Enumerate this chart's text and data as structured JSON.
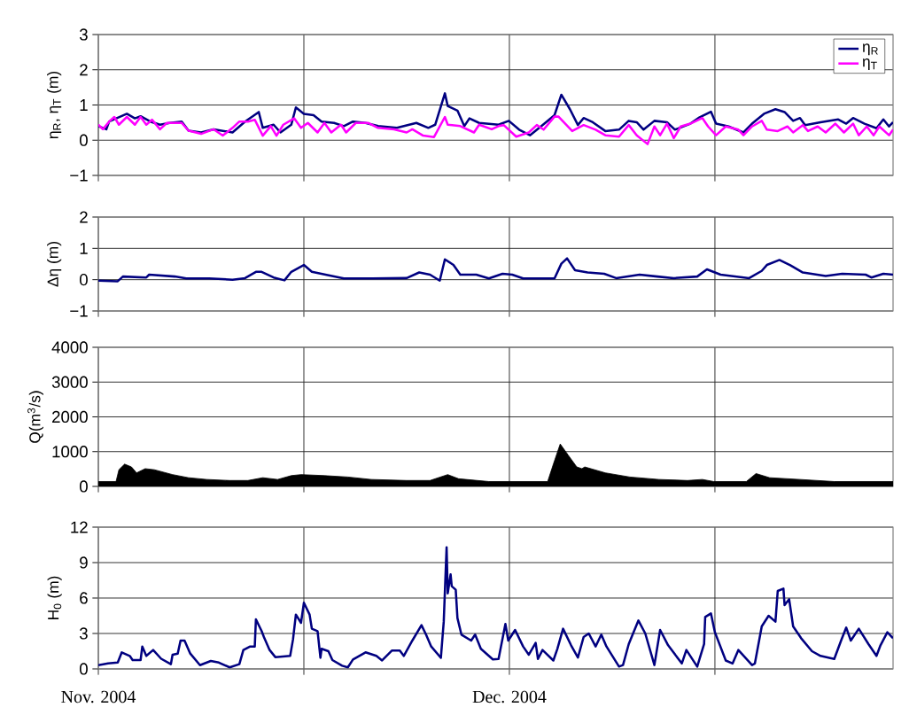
{
  "chart_data": [
    {
      "type": "line",
      "ylabel": "η$_{R}$, η$_{T}$ (m)",
      "xlim": [
        "2004-11-01",
        "2004-12-29"
      ],
      "xticks": [
        "2004-11-01",
        "2004-11-16",
        "2004-12-01",
        "2004-12-16"
      ],
      "ylim": [
        -1,
        3
      ],
      "yticks": [
        {
          "value": -1,
          "label": "−1"
        },
        0,
        1,
        2,
        3
      ],
      "tick_labels": "y",
      "grid": true,
      "legend": "top right",
      "series": [
        {
          "name": "η$_{R}$",
          "color": "#000080",
          "x": [
            "2004-11-01T00:00",
            "2004-11-01T14:00",
            "2004-11-01T19:00",
            "2004-11-03T02:00",
            "2004-11-03T16:00",
            "2004-11-04T02:00",
            "2004-11-04T19:00",
            "2004-11-05T12:00",
            "2004-11-06T05:00",
            "2004-11-07T02:00",
            "2004-11-07T14:00",
            "2004-11-08T12:00",
            "2004-11-09T10:00",
            "2004-11-10T19:00",
            "2004-11-11T17:00",
            "2004-11-12T17:00",
            "2004-11-13T00:00",
            "2004-11-13T19:00",
            "2004-11-14T07:00",
            "2004-11-15T02:00",
            "2004-11-15T10:00",
            "2004-11-16T00:00",
            "2004-11-16T17:00",
            "2004-11-17T07:00",
            "2004-11-18T05:00",
            "2004-11-18T22:00",
            "2004-11-19T14:00",
            "2004-11-20T12:00",
            "2004-11-21T10:00",
            "2004-11-22T19:00",
            "2004-11-24T05:00",
            "2004-11-25T02:00",
            "2004-11-25T14:00",
            "2004-11-26T07:00",
            "2004-11-26T12:00",
            "2004-11-27T05:00",
            "2004-11-27T17:00",
            "2004-11-28T02:00",
            "2004-11-28T19:00",
            "2004-11-30T05:00",
            "2004-11-30T23:00",
            "2004-12-01T17:00",
            "2004-12-02T12:00",
            "2004-12-03T10:00",
            "2004-12-04T07:00",
            "2004-12-04T19:00",
            "2004-12-05T10:00",
            "2004-12-06T00:00",
            "2004-12-06T10:00",
            "2004-12-07T02:00",
            "2004-12-08T00:00",
            "2004-12-09T00:00",
            "2004-12-09T17:00",
            "2004-12-10T07:00",
            "2004-12-10T19:00",
            "2004-12-11T14:00",
            "2004-12-12T12:00",
            "2004-12-13T02:00",
            "2004-12-14T05:00",
            "2004-12-14T19:00",
            "2004-12-15T17:00",
            "2004-12-16T02:00",
            "2004-12-17T00:00",
            "2004-12-18T02:00",
            "2004-12-18T17:00",
            "2004-12-19T14:00",
            "2004-12-20T10:00",
            "2004-12-21T02:00",
            "2004-12-21T17:00",
            "2004-12-22T05:00",
            "2004-12-22T14:00",
            "2004-12-23T17:00",
            "2004-12-25T00:00",
            "2004-12-25T14:00",
            "2004-12-26T02:00",
            "2004-12-26T22:00",
            "2004-12-27T19:00",
            "2004-12-28T07:00",
            "2004-12-28T17:00",
            "2004-12-29T00:00"
          ],
          "values": [
            0.4,
            0.31,
            0.53,
            0.75,
            0.62,
            0.68,
            0.53,
            0.44,
            0.49,
            0.53,
            0.27,
            0.22,
            0.31,
            0.22,
            0.53,
            0.8,
            0.35,
            0.44,
            0.22,
            0.44,
            0.93,
            0.75,
            0.71,
            0.53,
            0.49,
            0.4,
            0.53,
            0.49,
            0.4,
            0.35,
            0.49,
            0.35,
            0.44,
            1.33,
            0.97,
            0.84,
            0.4,
            0.62,
            0.49,
            0.44,
            0.55,
            0.3,
            0.14,
            0.43,
            0.71,
            1.29,
            0.88,
            0.43,
            0.63,
            0.51,
            0.26,
            0.3,
            0.55,
            0.51,
            0.3,
            0.55,
            0.51,
            0.3,
            0.47,
            0.63,
            0.81,
            0.47,
            0.39,
            0.22,
            0.47,
            0.75,
            0.88,
            0.8,
            0.55,
            0.63,
            0.43,
            0.51,
            0.59,
            0.47,
            0.63,
            0.47,
            0.34,
            0.59,
            0.39,
            0.51
          ]
        },
        {
          "name": "η$_{T}$",
          "color": "#ff00ff",
          "x": [
            "2004-11-01T00:00",
            "2004-11-01T08:00",
            "2004-11-01T19:00",
            "2004-11-02T04:00",
            "2004-11-02T12:00",
            "2004-11-03T02:00",
            "2004-11-03T16:00",
            "2004-11-04T02:00",
            "2004-11-04T12:00",
            "2004-11-04T22:00",
            "2004-11-05T12:00",
            "2004-11-06T00:00",
            "2004-11-07T02:00",
            "2004-11-07T14:00",
            "2004-11-08T12:00",
            "2004-11-09T10:00",
            "2004-11-10T02:00",
            "2004-11-10T19:00",
            "2004-11-11T07:00",
            "2004-11-11T22:00",
            "2004-11-12T10:00",
            "2004-11-13T00:00",
            "2004-11-13T14:00",
            "2004-11-14T00:00",
            "2004-11-14T12:00",
            "2004-11-15T07:00",
            "2004-11-15T19:00",
            "2004-11-16T07:00",
            "2004-11-17T00:00",
            "2004-11-17T12:00",
            "2004-11-18T00:00",
            "2004-11-18T17:00",
            "2004-11-19T02:00",
            "2004-11-19T19:00",
            "2004-11-20T17:00",
            "2004-11-21T10:00",
            "2004-11-22T14:00",
            "2004-11-23T12:00",
            "2004-11-23T22:00",
            "2004-11-24T17:00",
            "2004-11-25T12:00",
            "2004-11-26T07:00",
            "2004-11-26T12:00",
            "2004-11-27T10:00",
            "2004-11-28T10:00",
            "2004-11-28T19:00",
            "2004-11-29T17:00",
            "2004-11-30T05:00",
            "2004-11-30T14:00",
            "2004-12-01T12:00",
            "2004-12-02T10:00",
            "2004-12-03T00:00",
            "2004-12-03T12:00",
            "2004-12-04T07:00",
            "2004-12-04T14:00",
            "2004-12-05T14:00",
            "2004-12-06T10:00",
            "2004-12-07T07:00",
            "2004-12-08T00:00",
            "2004-12-09T00:00",
            "2004-12-09T17:00",
            "2004-12-10T07:00",
            "2004-12-11T02:00",
            "2004-12-11T14:00",
            "2004-12-12T00:00",
            "2004-12-12T12:00",
            "2004-12-13T00:00",
            "2004-12-13T12:00",
            "2004-12-14T05:00",
            "2004-12-15T02:00",
            "2004-12-15T12:00",
            "2004-12-16T02:00",
            "2004-12-16T19:00",
            "2004-12-17T17:00",
            "2004-12-18T02:00",
            "2004-12-18T17:00",
            "2004-12-19T10:00",
            "2004-12-19T19:00",
            "2004-12-20T14:00",
            "2004-12-21T07:00",
            "2004-12-21T17:00",
            "2004-12-22T10:00",
            "2004-12-22T19:00",
            "2004-12-23T12:00",
            "2004-12-24T02:00",
            "2004-12-24T19:00",
            "2004-12-25T10:00",
            "2004-12-26T02:00",
            "2004-12-26T12:00",
            "2004-12-27T02:00",
            "2004-12-27T14:00",
            "2004-12-28T00:00",
            "2004-12-28T17:00",
            "2004-12-29T00:00"
          ],
          "values": [
            0.44,
            0.31,
            0.53,
            0.66,
            0.44,
            0.66,
            0.44,
            0.66,
            0.44,
            0.58,
            0.31,
            0.49,
            0.49,
            0.27,
            0.18,
            0.31,
            0.13,
            0.35,
            0.53,
            0.53,
            0.58,
            0.13,
            0.4,
            0.13,
            0.44,
            0.62,
            0.35,
            0.49,
            0.22,
            0.49,
            0.22,
            0.44,
            0.22,
            0.49,
            0.49,
            0.35,
            0.31,
            0.22,
            0.31,
            0.13,
            0.09,
            0.66,
            0.44,
            0.4,
            0.22,
            0.44,
            0.31,
            0.4,
            0.43,
            0.1,
            0.22,
            0.43,
            0.3,
            0.67,
            0.67,
            0.26,
            0.43,
            0.3,
            0.14,
            0.1,
            0.43,
            0.14,
            -0.11,
            0.39,
            0.14,
            0.47,
            0.06,
            0.39,
            0.47,
            0.63,
            0.39,
            0.14,
            0.39,
            0.3,
            0.14,
            0.39,
            0.55,
            0.3,
            0.26,
            0.39,
            0.22,
            0.43,
            0.26,
            0.39,
            0.22,
            0.47,
            0.22,
            0.47,
            0.14,
            0.39,
            0.14,
            0.39,
            0.14,
            0.3
          ]
        }
      ]
    },
    {
      "type": "line",
      "ylabel": "Δη (m)",
      "xlim": [
        "2004-11-01",
        "2004-12-29"
      ],
      "xticks": [
        "2004-11-01",
        "2004-11-16",
        "2004-12-01",
        "2004-12-16"
      ],
      "ylim": [
        -1,
        2
      ],
      "yticks": [
        {
          "value": -1,
          "label": "−1"
        },
        0,
        1,
        2
      ],
      "tick_labels": "y",
      "grid": true,
      "series": [
        {
          "color": "#000080",
          "x": [
            "2004-11-01T00:00",
            "2004-11-02T10:00",
            "2004-11-02T19:00",
            "2004-11-04T12:00",
            "2004-11-04T17:00",
            "2004-11-06T14:00",
            "2004-11-07T10:00",
            "2004-11-09T02:00",
            "2004-11-10T19:00",
            "2004-11-11T17:00",
            "2004-11-12T12:00",
            "2004-11-12T22:00",
            "2004-11-13T19:00",
            "2004-11-14T14:00",
            "2004-11-15T02:00",
            "2004-11-16T00:00",
            "2004-11-16T14:00",
            "2004-11-17T14:00",
            "2004-11-18T22:00",
            "2004-11-21T00:00",
            "2004-11-23T12:00",
            "2004-11-24T10:00",
            "2004-11-25T05:00",
            "2004-11-25T22:00",
            "2004-11-26T07:00",
            "2004-11-26T22:00",
            "2004-11-27T10:00",
            "2004-11-28T14:00",
            "2004-11-29T12:00",
            "2004-11-30T12:00",
            "2004-12-01T05:00",
            "2004-12-02T00:00",
            "2004-12-03T17:00",
            "2004-12-04T07:00",
            "2004-12-04T19:00",
            "2004-12-05T05:00",
            "2004-12-05T19:00",
            "2004-12-06T17:00",
            "2004-12-07T22:00",
            "2004-12-08T19:00",
            "2004-12-10T12:00",
            "2004-12-11T19:00",
            "2004-12-13T00:00",
            "2004-12-14T17:00",
            "2004-12-15T10:00",
            "2004-12-16T10:00",
            "2004-12-18T12:00",
            "2004-12-19T10:00",
            "2004-12-19T19:00",
            "2004-12-20T17:00",
            "2004-12-21T12:00",
            "2004-12-22T10:00",
            "2004-12-24T02:00",
            "2004-12-25T07:00",
            "2004-12-27T00:00",
            "2004-12-27T10:00",
            "2004-12-28T07:00",
            "2004-12-29T00:00"
          ],
          "values": [
            -0.03,
            -0.05,
            0.1,
            0.07,
            0.16,
            0.1,
            0.04,
            0.04,
            0,
            0.05,
            0.25,
            0.25,
            0.07,
            -0.02,
            0.25,
            0.47,
            0.25,
            0.16,
            0.04,
            0.04,
            0.05,
            0.23,
            0.16,
            -0.03,
            0.65,
            0.47,
            0.16,
            0.16,
            0.04,
            0.19,
            0.16,
            0.04,
            0.04,
            0.04,
            0.51,
            0.68,
            0.3,
            0.23,
            0.19,
            0.05,
            0.16,
            0.1,
            0.05,
            0.1,
            0.33,
            0.16,
            0.05,
            0.28,
            0.47,
            0.63,
            0.46,
            0.23,
            0.12,
            0.19,
            0.16,
            0.07,
            0.19,
            0.16
          ]
        }
      ]
    },
    {
      "type": "area",
      "ylabel": "Q(m$^{3}$/s)",
      "xlim": [
        "2004-11-01",
        "2004-12-29"
      ],
      "xticks": [
        "2004-11-01",
        "2004-11-16",
        "2004-12-01",
        "2004-12-16"
      ],
      "ylim": [
        0,
        4000
      ],
      "yticks": [
        0,
        1000,
        2000,
        3000,
        4000
      ],
      "tick_labels": "y",
      "grid": true,
      "series": [
        {
          "color": "#000000",
          "x": [
            "2004-11-01T00:00",
            "2004-11-02T07:00",
            "2004-11-02T12:00",
            "2004-11-02T22:00",
            "2004-11-03T10:00",
            "2004-11-03T19:00",
            "2004-11-04T10:00",
            "2004-11-05T02:00",
            "2004-11-06T10:00",
            "2004-11-07T14:00",
            "2004-11-08T22:00",
            "2004-11-10T14:00",
            "2004-11-11T22:00",
            "2004-11-13T00:00",
            "2004-11-14T02:00",
            "2004-11-15T02:00",
            "2004-11-15T19:00",
            "2004-11-17T12:00",
            "2004-11-19T05:00",
            "2004-11-20T22:00",
            "2004-11-23T12:00",
            "2004-11-25T05:00",
            "2004-11-26T12:00",
            "2004-11-27T07:00",
            "2004-11-29T12:00",
            "2004-12-03T19:00",
            "2004-12-04T05:00",
            "2004-12-04T17:00",
            "2004-12-05T07:00",
            "2004-12-05T22:00",
            "2004-12-06T07:00",
            "2004-12-06T12:00",
            "2004-12-08T00:00",
            "2004-12-09T19:00",
            "2004-12-11T22:00",
            "2004-12-14T00:00",
            "2004-12-15T02:00",
            "2004-12-15T22:00",
            "2004-12-18T07:00",
            "2004-12-19T00:00",
            "2004-12-20T00:00",
            "2004-12-22T05:00",
            "2004-12-24T17:00",
            "2004-12-29T00:00"
          ],
          "values": [
            140,
            140,
            480,
            640,
            560,
            390,
            510,
            480,
            340,
            250,
            200,
            170,
            170,
            250,
            200,
            310,
            340,
            310,
            270,
            200,
            170,
            170,
            340,
            220,
            140,
            140,
            640,
            1220,
            900,
            560,
            510,
            560,
            390,
            270,
            200,
            170,
            200,
            140,
            140,
            370,
            250,
            200,
            140,
            140
          ]
        }
      ]
    },
    {
      "type": "line",
      "ylabel": "H$_{0}$ (m)",
      "xlim": [
        "2004-11-01",
        "2004-12-29"
      ],
      "xticks": [
        {
          "value": "2004-11-01",
          "label": "Nov. 2004"
        },
        {
          "value": "2004-11-16",
          "label": null
        },
        {
          "value": "2004-12-01",
          "label": "Dec. 2004"
        },
        {
          "value": "2004-12-16",
          "label": null
        }
      ],
      "ylim": [
        0,
        12
      ],
      "yticks": [
        0,
        3,
        6,
        9,
        12
      ],
      "grid": true,
      "series": [
        {
          "color": "#000080",
          "x": [
            "2004-11-01T00:00",
            "2004-11-01T17:00",
            "2004-11-02T10:00",
            "2004-11-02T17:00",
            "2004-11-03T07:00",
            "2004-11-03T12:00",
            "2004-11-04T02:00",
            "2004-11-04T05:00",
            "2004-11-04T12:00",
            "2004-11-05T00:00",
            "2004-11-05T14:00",
            "2004-11-06T07:00",
            "2004-11-06T10:00",
            "2004-11-06T19:00",
            "2004-11-07T00:00",
            "2004-11-07T07:00",
            "2004-11-07T17:00",
            "2004-11-08T10:00",
            "2004-11-09T05:00",
            "2004-11-09T19:00",
            "2004-11-10T14:00",
            "2004-11-11T07:00",
            "2004-11-11T14:00",
            "2004-11-12T02:00",
            "2004-11-12T10:00",
            "2004-11-12T12:00",
            "2004-11-12T22:00",
            "2004-11-13T02:00",
            "2004-11-13T12:00",
            "2004-11-13T22:00",
            "2004-11-15T00:00",
            "2004-11-15T05:00",
            "2004-11-15T10:00",
            "2004-11-15T19:00",
            "2004-11-16T00:00",
            "2004-11-16T10:00",
            "2004-11-16T14:00",
            "2004-11-17T00:00",
            "2004-11-17T05:00",
            "2004-11-17T07:00",
            "2004-11-17T19:00",
            "2004-11-18T02:00",
            "2004-11-18T19:00",
            "2004-11-19T05:00",
            "2004-11-19T14:00",
            "2004-11-20T12:00",
            "2004-11-21T07:00",
            "2004-11-21T17:00",
            "2004-11-22T10:00",
            "2004-11-23T00:00",
            "2004-11-23T07:00",
            "2004-11-23T22:00",
            "2004-11-24T14:00",
            "2004-11-24T22:00",
            "2004-11-25T07:00",
            "2004-11-26T00:00",
            "2004-11-26T05:00",
            "2004-11-26T10:00",
            "2004-11-26T12:00",
            "2004-11-26T17:00",
            "2004-11-26T19:00",
            "2004-11-27T02:00",
            "2004-11-27T05:00",
            "2004-11-27T12:00",
            "2004-11-28T05:00",
            "2004-11-28T12:00",
            "2004-11-28T22:00",
            "2004-11-29T19:00",
            "2004-11-30T05:00",
            "2004-11-30T17:00",
            "2004-11-30T22:00",
            "2004-12-01T10:00",
            "2004-12-02T00:00",
            "2004-12-02T10:00",
            "2004-12-02T22:00",
            "2004-12-03T02:00",
            "2004-12-03T10:00",
            "2004-12-04T05:00",
            "2004-12-04T12:00",
            "2004-12-04T22:00",
            "2004-12-05T12:00",
            "2004-12-06T00:00",
            "2004-12-06T10:00",
            "2004-12-06T19:00",
            "2004-12-07T07:00",
            "2004-12-07T17:00",
            "2004-12-08T02:00",
            "2004-12-09T00:00",
            "2004-12-09T07:00",
            "2004-12-09T17:00",
            "2004-12-10T10:00",
            "2004-12-10T22:00",
            "2004-12-11T14:00",
            "2004-12-12T00:00",
            "2004-12-12T14:00",
            "2004-12-13T14:00",
            "2004-12-13T22:00",
            "2004-12-14T17:00",
            "2004-12-15T05:00",
            "2004-12-15T07:00",
            "2004-12-15T17:00",
            "2004-12-16T00:00",
            "2004-12-16T19:00",
            "2004-12-17T07:00",
            "2004-12-17T17:00",
            "2004-12-18T17:00",
            "2004-12-18T22:00",
            "2004-12-19T10:00",
            "2004-12-19T22:00",
            "2004-12-20T10:00",
            "2004-12-20T14:00",
            "2004-12-21T00:00",
            "2004-12-21T02:00",
            "2004-12-21T10:00",
            "2004-12-21T17:00",
            "2004-12-22T07:00",
            "2004-12-23T02:00",
            "2004-12-23T17:00",
            "2004-12-24T17:00",
            "2004-12-25T05:00",
            "2004-12-25T14:00",
            "2004-12-25T22:00",
            "2004-12-26T12:00",
            "2004-12-27T05:00",
            "2004-12-27T19:00",
            "2004-12-28T02:00",
            "2004-12-28T14:00",
            "2004-12-29T00:00"
          ],
          "values": [
            0.32,
            0.46,
            0.54,
            1.4,
            1.1,
            0.75,
            0.75,
            1.9,
            1.1,
            1.6,
            0.86,
            0.4,
            1.2,
            1.3,
            2.4,
            2.4,
            1.3,
            0.32,
            0.67,
            0.54,
            0.13,
            0.4,
            1.6,
            1.9,
            1.9,
            4.2,
            3.2,
            2.7,
            1.6,
            1.0,
            1.1,
            2.5,
            4.6,
            3.9,
            5.6,
            4.6,
            3.4,
            3.2,
            0.94,
            1.7,
            1.5,
            0.75,
            0.27,
            0.13,
            0.8,
            1.4,
            1.1,
            0.72,
            1.55,
            1.55,
            1.1,
            2.4,
            3.7,
            2.9,
            1.9,
            0.94,
            4.0,
            10.3,
            6.4,
            8.0,
            7.0,
            6.7,
            4.3,
            2.9,
            2.4,
            2.9,
            1.7,
            0.8,
            0.84,
            3.8,
            2.4,
            3.3,
            1.9,
            1.2,
            2.2,
            0.84,
            1.6,
            0.71,
            1.7,
            3.4,
            2.0,
            0.97,
            2.7,
            3.0,
            1.9,
            2.9,
            1.9,
            0.2,
            0.33,
            2.1,
            4.1,
            3.0,
            0.33,
            3.3,
            2.0,
            0.46,
            1.6,
            0.2,
            2.1,
            4.4,
            4.7,
            3.1,
            0.71,
            0.46,
            1.6,
            0.33,
            0.46,
            3.6,
            4.5,
            4.0,
            6.6,
            6.8,
            5.4,
            5.9,
            3.6,
            2.6,
            1.5,
            1.1,
            0.84,
            2.4,
            3.5,
            2.4,
            3.4,
            2.1,
            1.1,
            2.0,
            3.1,
            2.6
          ]
        }
      ]
    }
  ]
}
